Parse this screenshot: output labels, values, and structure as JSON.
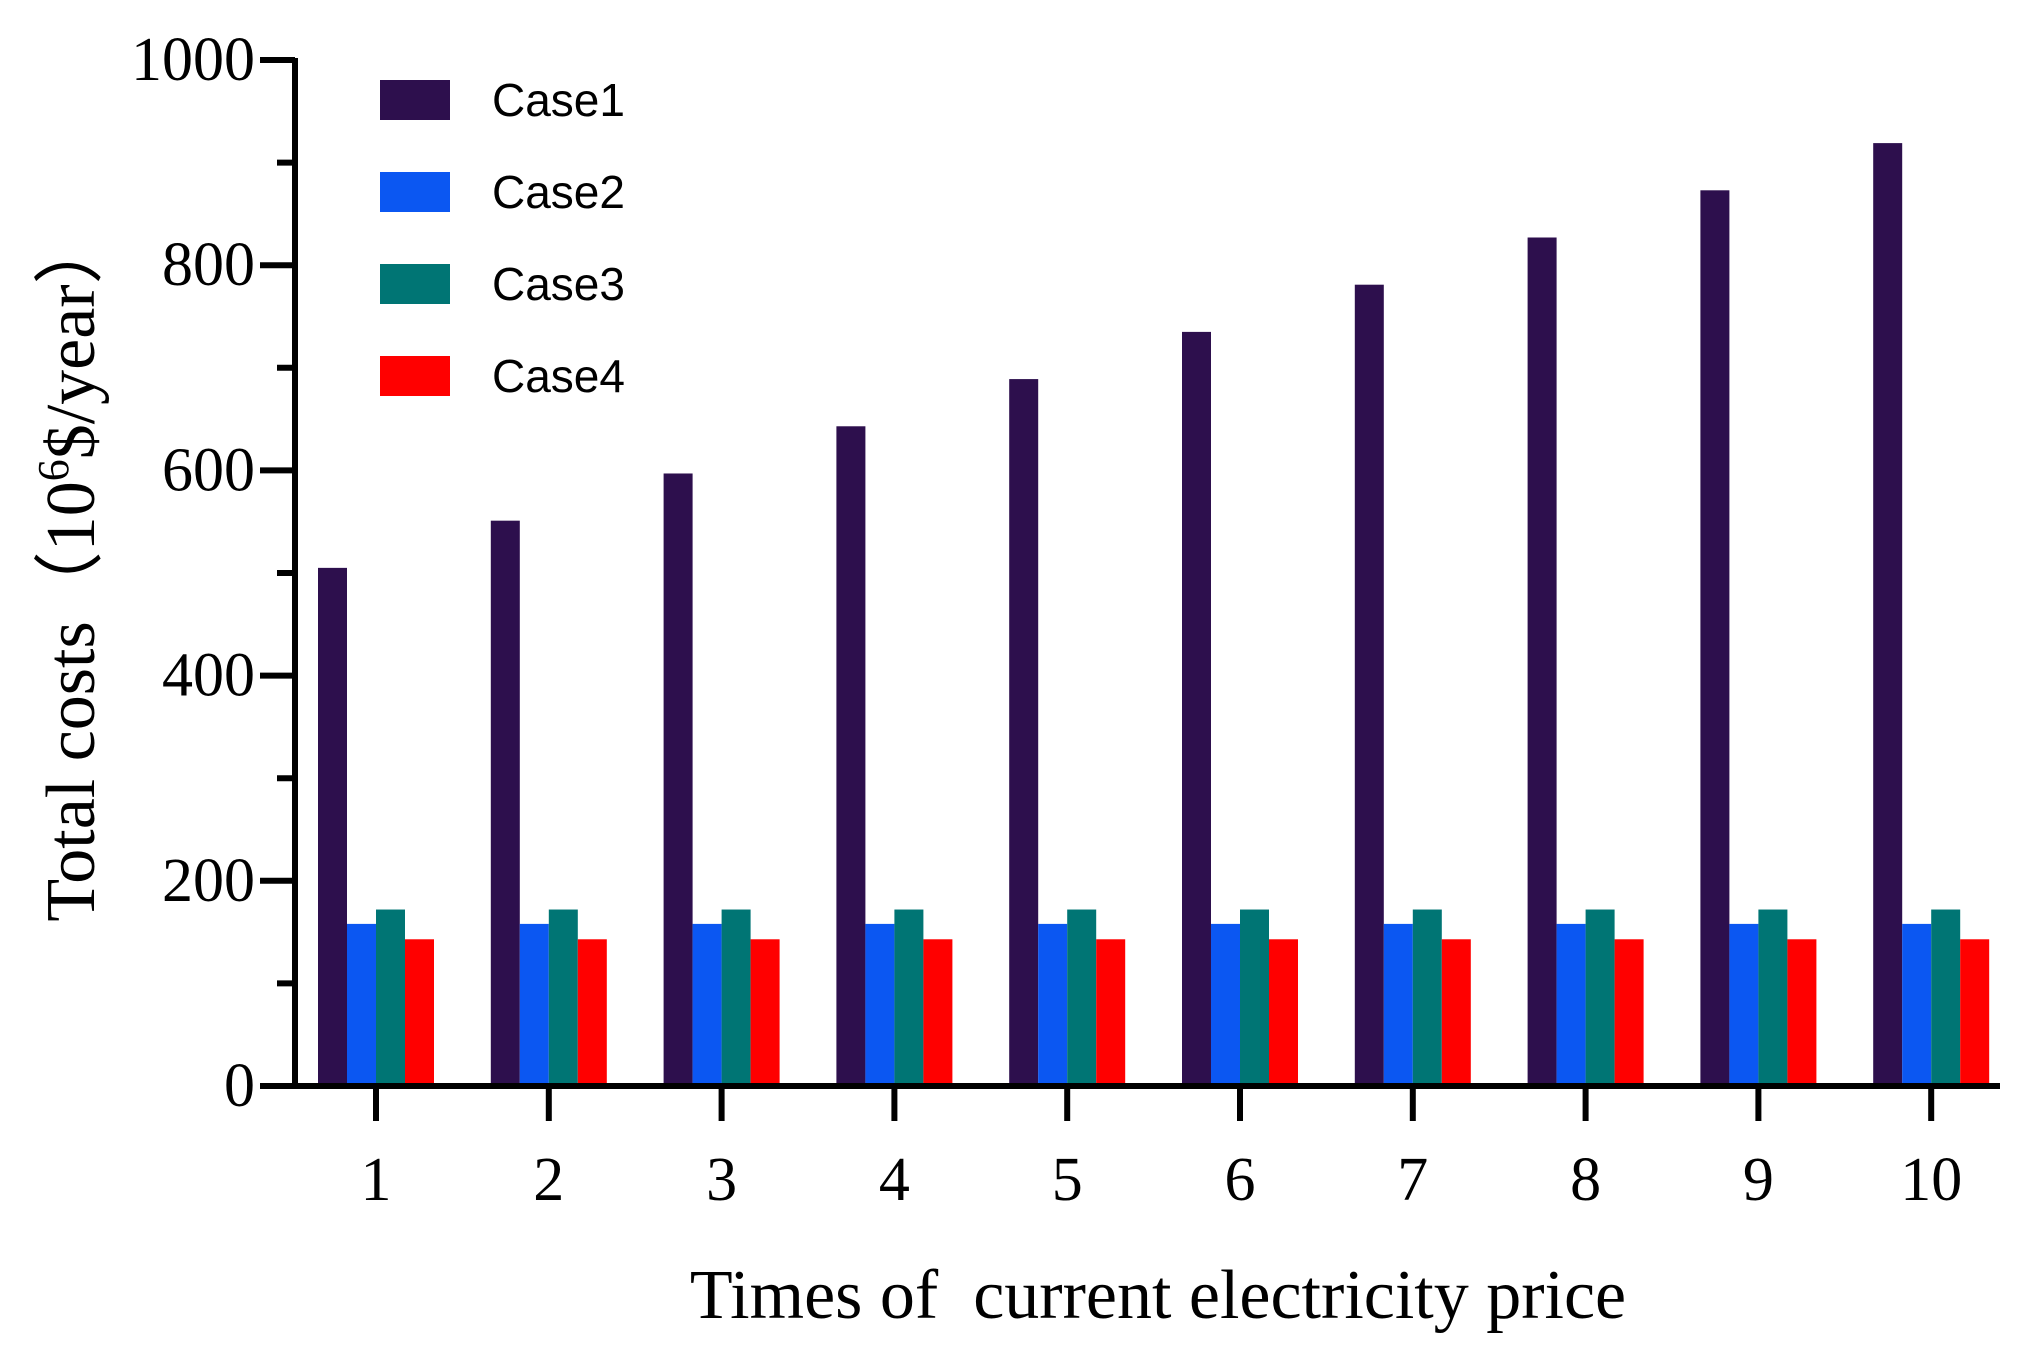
{
  "chart_data": {
    "type": "bar",
    "title": "",
    "xlabel": "Times of  current electricity price",
    "ylabel_main": "Total costs",
    "ylabel_unit_open": "（10",
    "ylabel_unit_sup": "6",
    "ylabel_unit_close": "$/year）",
    "categories": [
      "1",
      "2",
      "3",
      "4",
      "5",
      "6",
      "7",
      "8",
      "9",
      "10"
    ],
    "ylim": [
      0,
      1000
    ],
    "y_ticks": [
      "0",
      "200",
      "400",
      "600",
      "800",
      "1000"
    ],
    "y_tick_values": [
      0,
      200,
      400,
      600,
      800,
      1000
    ],
    "y_minor_step": 100,
    "legend_position": "top-left",
    "series": [
      {
        "name": "Case1",
        "color": "#2d0f4d",
        "values": [
          505,
          551,
          597,
          643,
          689,
          735,
          781,
          827,
          873,
          919
        ]
      },
      {
        "name": "Case2",
        "color": "#0b57f2",
        "values": [
          158,
          158,
          158,
          158,
          158,
          158,
          158,
          158,
          158,
          158
        ]
      },
      {
        "name": "Case3",
        "color": "#007574",
        "values": [
          172,
          172,
          172,
          172,
          172,
          172,
          172,
          172,
          172,
          172
        ]
      },
      {
        "name": "Case4",
        "color": "#ff0000",
        "values": [
          143,
          143,
          143,
          143,
          143,
          143,
          143,
          143,
          143,
          143
        ]
      }
    ]
  }
}
